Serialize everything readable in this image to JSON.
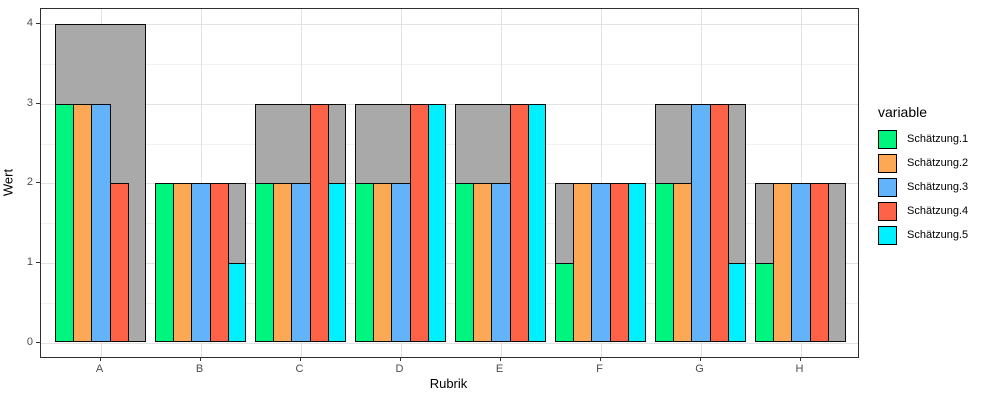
{
  "chart_data": {
    "type": "bar",
    "title": "",
    "xlabel": "Rubrik",
    "ylabel": "Wert",
    "ylim": [
      0,
      4
    ],
    "yticks": [
      0,
      1,
      2,
      3,
      4
    ],
    "grid": true,
    "legend_title": "variable",
    "legend_position": "right",
    "categories": [
      "A",
      "B",
      "C",
      "D",
      "E",
      "F",
      "G",
      "H"
    ],
    "background_series": {
      "name": "background-max-bar",
      "color": "#A9A9A9",
      "values": [
        4,
        2,
        3,
        3,
        3,
        2,
        3,
        2
      ]
    },
    "series": [
      {
        "name": "Schätzung.1",
        "color": "#00F57E",
        "values": [
          3,
          2,
          2,
          2,
          2,
          1,
          2,
          1
        ]
      },
      {
        "name": "Schätzung.2",
        "color": "#FCA855",
        "values": [
          3,
          2,
          2,
          2,
          2,
          2,
          2,
          2
        ]
      },
      {
        "name": "Schätzung.3",
        "color": "#63B3FB",
        "values": [
          3,
          2,
          2,
          2,
          2,
          2,
          3,
          2
        ]
      },
      {
        "name": "Schätzung.4",
        "color": "#FF6347",
        "values": [
          2,
          2,
          3,
          3,
          3,
          2,
          3,
          2
        ]
      },
      {
        "name": "Schätzung.5",
        "color": "#00F0FF",
        "values": [
          0,
          1,
          2,
          3,
          3,
          2,
          1,
          0
        ]
      }
    ],
    "colors": {
      "panel_background": "#FFFFFF",
      "panel_border": "#2F2F2F",
      "grid_major": "#E3E3E3",
      "grid_minor": "#F1F1F1",
      "bar_outline": "#0A0A0A",
      "tick_label": "#4D4D4D"
    }
  }
}
